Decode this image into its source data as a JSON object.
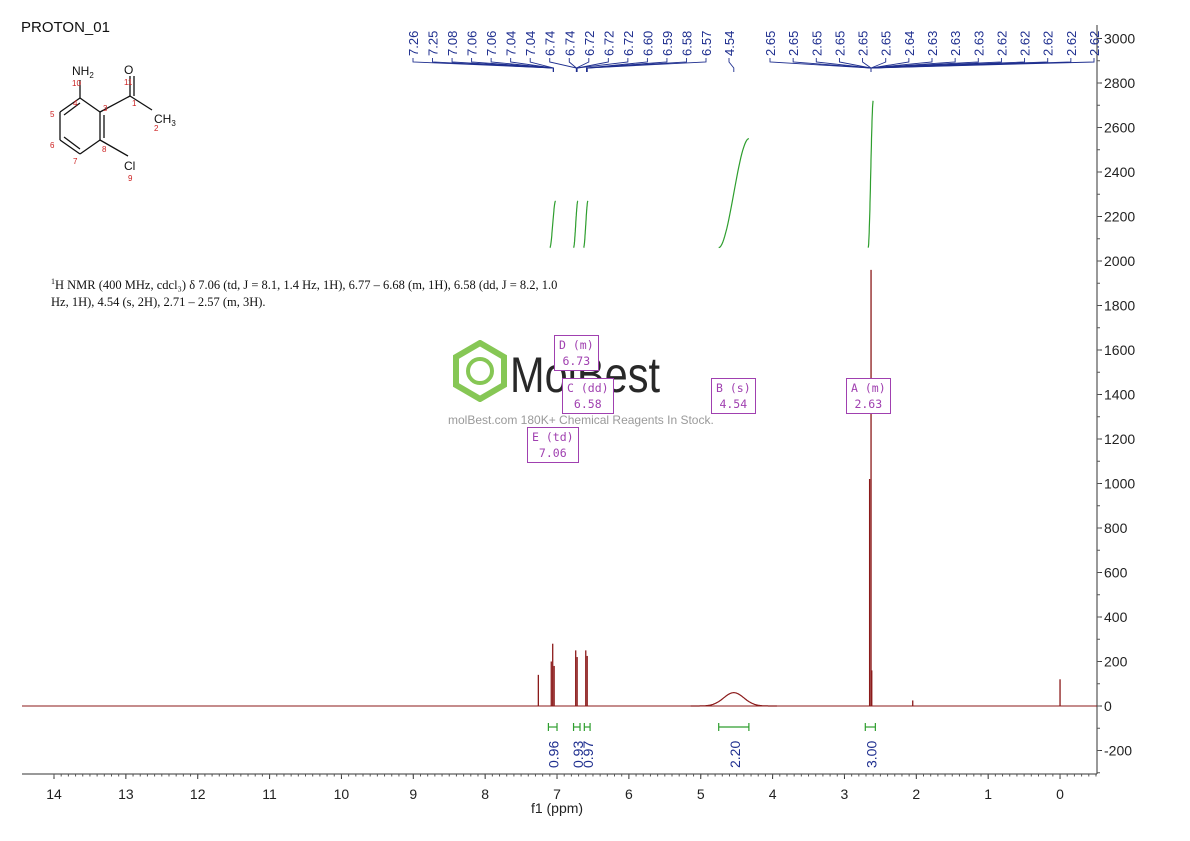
{
  "title": "PROTON_01",
  "description": {
    "nucleus_sup": "1",
    "line1_rest": "H NMR (400 MHz, cdcl₃) δ 7.06 (td, J = 8.1, 1.4 Hz, 1H), 6.77 – 6.68 (m, 1H), 6.58 (dd, J = 8.2, 1.0",
    "line2": "Hz, 1H), 4.54 (s, 2H), 2.71 – 2.57 (m, 3H)."
  },
  "molecule": {
    "atoms": [
      {
        "label": "NH",
        "sub": "2",
        "index": "10"
      },
      {
        "label": "O",
        "index": "11"
      },
      {
        "label": "CH",
        "sub": "3",
        "index": "2"
      },
      {
        "label": "Cl",
        "index": "9"
      }
    ],
    "ring_numbers": [
      "4",
      "3",
      "5",
      "6",
      "7",
      "8",
      "1"
    ]
  },
  "watermark": {
    "brand": "MolBest",
    "tagline": "molBest.com 180K+ Chemical Reagents In Stock."
  },
  "peak_boxes": [
    {
      "name": "D (m)",
      "value": "6.73"
    },
    {
      "name": "C (dd)",
      "value": "6.58"
    },
    {
      "name": "E (td)",
      "value": "7.06"
    },
    {
      "name": "B (s)",
      "value": "4.54"
    },
    {
      "name": "A (m)",
      "value": "2.63"
    }
  ],
  "colors": {
    "spectrum": "#8b1a1a",
    "peak_labels": "#1f2f8f",
    "integral": "#2e9e2e",
    "multiplet_box": "#a040b0",
    "molecule_index": "#cc2020",
    "watermark_logo": "#7ac143"
  },
  "chart_data": {
    "type": "line",
    "title": "PROTON_01",
    "xlabel": "f1 (ppm)",
    "ylabel": "",
    "xlim": [
      14.5,
      -0.5
    ],
    "ylim": [
      -300,
      3050
    ],
    "x_axis_reversed": true,
    "y_axis_side": "right",
    "x_ticks": [
      "14",
      "13",
      "12",
      "11",
      "10",
      "9",
      "8",
      "7",
      "6",
      "5",
      "4",
      "3",
      "2",
      "1",
      "0"
    ],
    "y_ticks": [
      "-200",
      "0",
      "200",
      "400",
      "600",
      "800",
      "1000",
      "1200",
      "1400",
      "1600",
      "1800",
      "2000",
      "2200",
      "2400",
      "2600",
      "2800",
      "3000"
    ],
    "peaks": [
      {
        "ppm": 7.26,
        "height": 140
      },
      {
        "ppm": 7.08,
        "height": 200
      },
      {
        "ppm": 7.06,
        "height": 280
      },
      {
        "ppm": 7.04,
        "height": 180
      },
      {
        "ppm": 6.74,
        "height": 250
      },
      {
        "ppm": 6.72,
        "height": 220
      },
      {
        "ppm": 6.6,
        "height": 250
      },
      {
        "ppm": 6.58,
        "height": 225
      },
      {
        "ppm": 2.65,
        "height": 1020
      },
      {
        "ppm": 2.63,
        "height": 1960
      },
      {
        "ppm": 2.62,
        "height": 160
      },
      {
        "ppm": 2.05,
        "height": 25
      },
      {
        "ppm": 0.0,
        "height": 120
      }
    ],
    "broad_peaks": [
      {
        "ppm": 4.54,
        "height": 60,
        "width": 0.2
      }
    ],
    "peak_labels": [
      "7.26",
      "7.25",
      "7.08",
      "7.06",
      "7.06",
      "7.04",
      "7.04",
      "6.74",
      "6.74",
      "6.72",
      "6.72",
      "6.72",
      "6.60",
      "6.59",
      "6.58",
      "6.57",
      "4.54",
      "2.65",
      "2.65",
      "2.65",
      "2.65",
      "2.65",
      "2.65",
      "2.64",
      "2.63",
      "2.63",
      "2.63",
      "2.62",
      "2.62",
      "2.62",
      "2.62",
      "2.62"
    ],
    "integrals": [
      {
        "label": "0.96",
        "from": 7.12,
        "to": 7.0
      },
      {
        "label": "0.93",
        "from": 6.77,
        "to": 6.68
      },
      {
        "label": "0.97",
        "from": 6.62,
        "to": 6.54
      },
      {
        "label": "2.20",
        "from": 4.75,
        "to": 4.33
      },
      {
        "label": "3.00",
        "from": 2.71,
        "to": 2.57
      }
    ],
    "integral_curves": [
      {
        "from": 7.1,
        "to": 7.02,
        "y_start": 2060,
        "y_end": 2270
      },
      {
        "from": 6.77,
        "to": 6.71,
        "y_start": 2060,
        "y_end": 2270
      },
      {
        "from": 6.63,
        "to": 6.57,
        "y_start": 2060,
        "y_end": 2270
      },
      {
        "from": 4.75,
        "to": 4.33,
        "y_start": 2060,
        "y_end": 2550
      },
      {
        "from": 2.67,
        "to": 2.6,
        "y_start": 2060,
        "y_end": 2720
      }
    ]
  }
}
